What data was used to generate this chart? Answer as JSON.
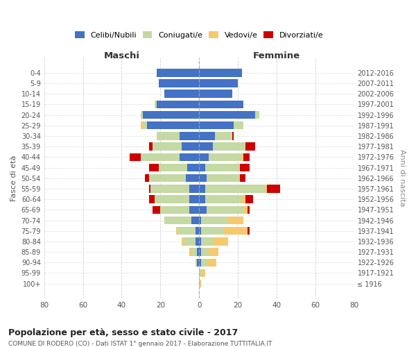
{
  "age_groups": [
    "0-4",
    "5-9",
    "10-14",
    "15-19",
    "20-24",
    "25-29",
    "30-34",
    "35-39",
    "40-44",
    "45-49",
    "50-54",
    "55-59",
    "60-64",
    "65-69",
    "70-74",
    "75-79",
    "80-84",
    "85-89",
    "90-94",
    "95-99",
    "100+"
  ],
  "birth_years": [
    "2012-2016",
    "2007-2011",
    "2002-2006",
    "1997-2001",
    "1992-1996",
    "1987-1991",
    "1982-1986",
    "1977-1981",
    "1972-1976",
    "1967-1971",
    "1962-1966",
    "1957-1961",
    "1952-1956",
    "1947-1951",
    "1942-1946",
    "1937-1941",
    "1932-1936",
    "1927-1931",
    "1922-1926",
    "1917-1921",
    "≤ 1916"
  ],
  "male": {
    "celibi": [
      22,
      21,
      18,
      22,
      29,
      27,
      10,
      9,
      10,
      6,
      7,
      5,
      5,
      5,
      4,
      2,
      2,
      1,
      1,
      0,
      0
    ],
    "coniugati": [
      0,
      0,
      0,
      1,
      1,
      2,
      12,
      15,
      20,
      15,
      19,
      20,
      18,
      15,
      14,
      9,
      6,
      3,
      1,
      0,
      0
    ],
    "vedovi": [
      0,
      0,
      0,
      0,
      0,
      1,
      0,
      0,
      0,
      0,
      0,
      0,
      0,
      0,
      0,
      1,
      1,
      1,
      0,
      0,
      0
    ],
    "divorziati": [
      0,
      0,
      0,
      0,
      0,
      0,
      0,
      2,
      6,
      5,
      2,
      1,
      3,
      4,
      0,
      0,
      0,
      0,
      0,
      0,
      0
    ]
  },
  "female": {
    "nubili": [
      22,
      20,
      17,
      23,
      29,
      18,
      8,
      7,
      5,
      3,
      4,
      3,
      3,
      4,
      1,
      1,
      1,
      1,
      1,
      0,
      0
    ],
    "coniugate": [
      0,
      0,
      0,
      0,
      2,
      5,
      9,
      17,
      17,
      18,
      17,
      31,
      19,
      19,
      14,
      12,
      6,
      4,
      3,
      1,
      0
    ],
    "vedove": [
      0,
      0,
      0,
      0,
      0,
      0,
      0,
      0,
      1,
      0,
      0,
      1,
      2,
      2,
      8,
      12,
      8,
      5,
      5,
      2,
      1
    ],
    "divorziate": [
      0,
      0,
      0,
      0,
      0,
      0,
      1,
      5,
      3,
      5,
      3,
      7,
      4,
      1,
      0,
      1,
      0,
      0,
      0,
      0,
      0
    ]
  },
  "colors": {
    "celibi": "#4472c4",
    "coniugati": "#c5d9a4",
    "vedovi": "#f5c96e",
    "divorziati": "#cc0000"
  },
  "xlim": 80,
  "title": "Popolazione per età, sesso e stato civile - 2017",
  "subtitle": "COMUNE DI RODERO (CO) - Dati ISTAT 1° gennaio 2017 - Elaborazione TUTTITALIA.IT",
  "ylabel_left": "Fasce di età",
  "ylabel_right": "Anni di nascita",
  "xlabel_male": "Maschi",
  "xlabel_female": "Femmine",
  "bg_color": "#ffffff",
  "grid_color": "#cccccc",
  "legend_labels": [
    "Celibi/Nubili",
    "Coniugati/e",
    "Vedovi/e",
    "Divorziati/e"
  ]
}
